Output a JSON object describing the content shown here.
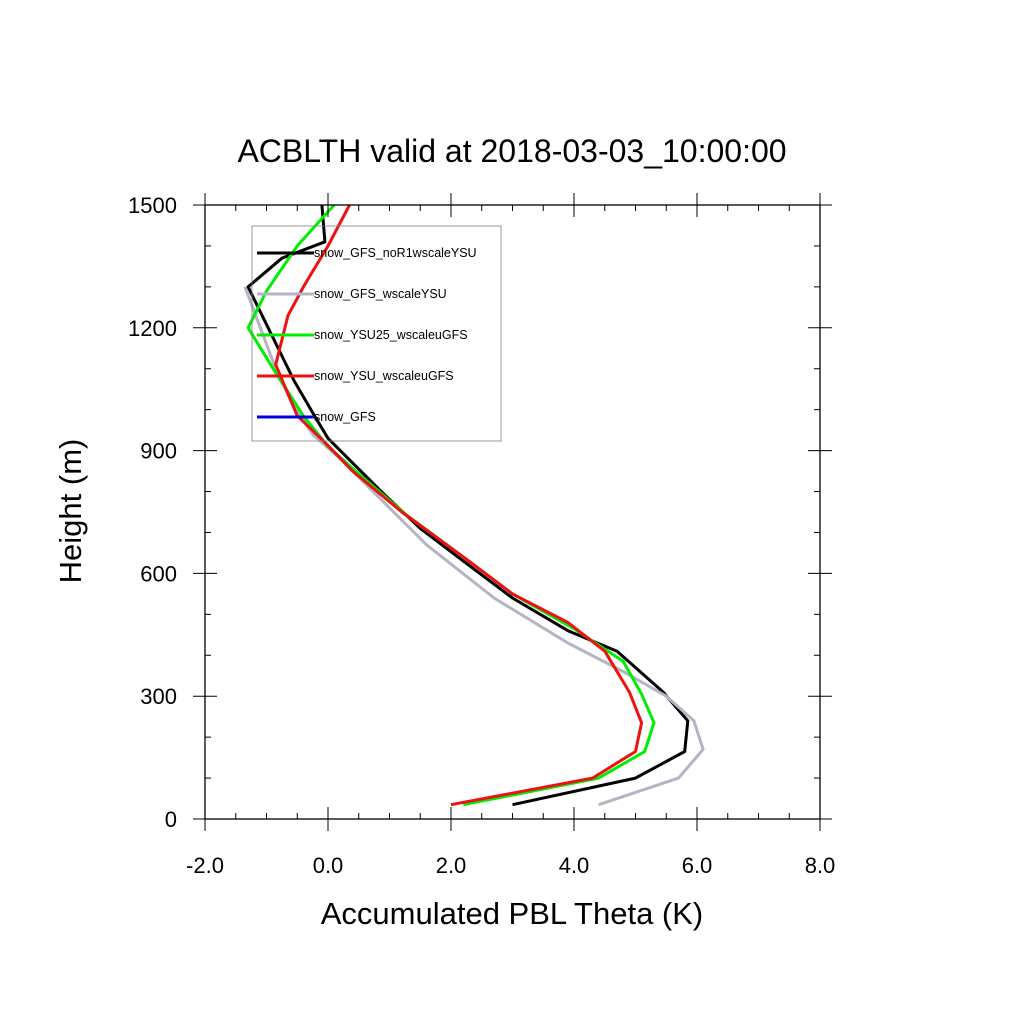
{
  "chart_data": {
    "type": "line",
    "title": "ACBLTH valid at 2018-03-03_10:00:00",
    "xlabel": "Accumulated PBL Theta (K)",
    "ylabel": "Height (m)",
    "xlim": [
      -2.0,
      8.0
    ],
    "ylim": [
      0,
      1500
    ],
    "xticks": [
      -2.0,
      0.0,
      2.0,
      4.0,
      6.0,
      8.0
    ],
    "xtick_labels": [
      "-2.0",
      "0.0",
      "2.0",
      "4.0",
      "6.0",
      "8.0"
    ],
    "yticks": [
      0,
      300,
      600,
      900,
      1200,
      1500
    ],
    "ytick_labels": [
      "0",
      "300",
      "600",
      "900",
      "1200",
      "1500"
    ],
    "grid": false,
    "legend_position": "top-left",
    "series": [
      {
        "name": "snow_GFS_noR1wscaleYSU",
        "color": "#000000",
        "x": [
          3.0,
          5.0,
          5.8,
          5.85,
          5.45,
          4.7,
          3.9,
          3.0,
          2.2,
          1.5,
          0.9,
          0.4,
          0.0,
          -0.2,
          -0.55,
          -1.3,
          -0.75,
          -0.05,
          -0.1
        ],
        "y": [
          35,
          100,
          165,
          240,
          310,
          410,
          460,
          540,
          630,
          710,
          795,
          870,
          930,
          980,
          1070,
          1300,
          1370,
          1410,
          1500
        ]
      },
      {
        "name": "snow_GFS_wscaleYSU",
        "color": "#b4b4c4",
        "x": [
          4.4,
          5.7,
          6.1,
          5.95,
          5.5,
          4.8,
          3.9,
          2.7,
          1.6,
          0.8,
          0.2,
          -0.25,
          -0.6,
          -0.85,
          -1.35
        ],
        "y": [
          35,
          100,
          170,
          240,
          300,
          360,
          430,
          540,
          670,
          790,
          880,
          940,
          1020,
          1100,
          1300
        ]
      },
      {
        "name": "snow_YSU25_wscaleuGFS",
        "color": "#00ee00",
        "x": [
          2.2,
          4.4,
          5.15,
          5.3,
          5.1,
          4.8,
          4.0,
          3.0,
          2.2,
          1.3,
          0.6,
          0.0,
          -0.4,
          -0.85,
          -1.3,
          -1.0,
          -0.5,
          0.1
        ],
        "y": [
          35,
          100,
          165,
          235,
          305,
          385,
          465,
          550,
          640,
          740,
          830,
          910,
          985,
          1090,
          1200,
          1290,
          1400,
          1500
        ]
      },
      {
        "name": "snow_YSU_wscaleuGFS",
        "color": "#ee1111",
        "x": [
          2.0,
          4.3,
          5.0,
          5.1,
          4.9,
          4.5,
          3.9,
          3.0,
          2.2,
          1.2,
          0.4,
          -0.05,
          -0.5,
          -0.85,
          -0.65,
          -0.4,
          0.0,
          0.35
        ],
        "y": [
          35,
          100,
          165,
          235,
          310,
          410,
          480,
          550,
          640,
          750,
          850,
          920,
          985,
          1110,
          1230,
          1300,
          1400,
          1500
        ]
      },
      {
        "name": "snow_GFS",
        "color": "#0000dd",
        "x": [],
        "y": []
      }
    ]
  }
}
